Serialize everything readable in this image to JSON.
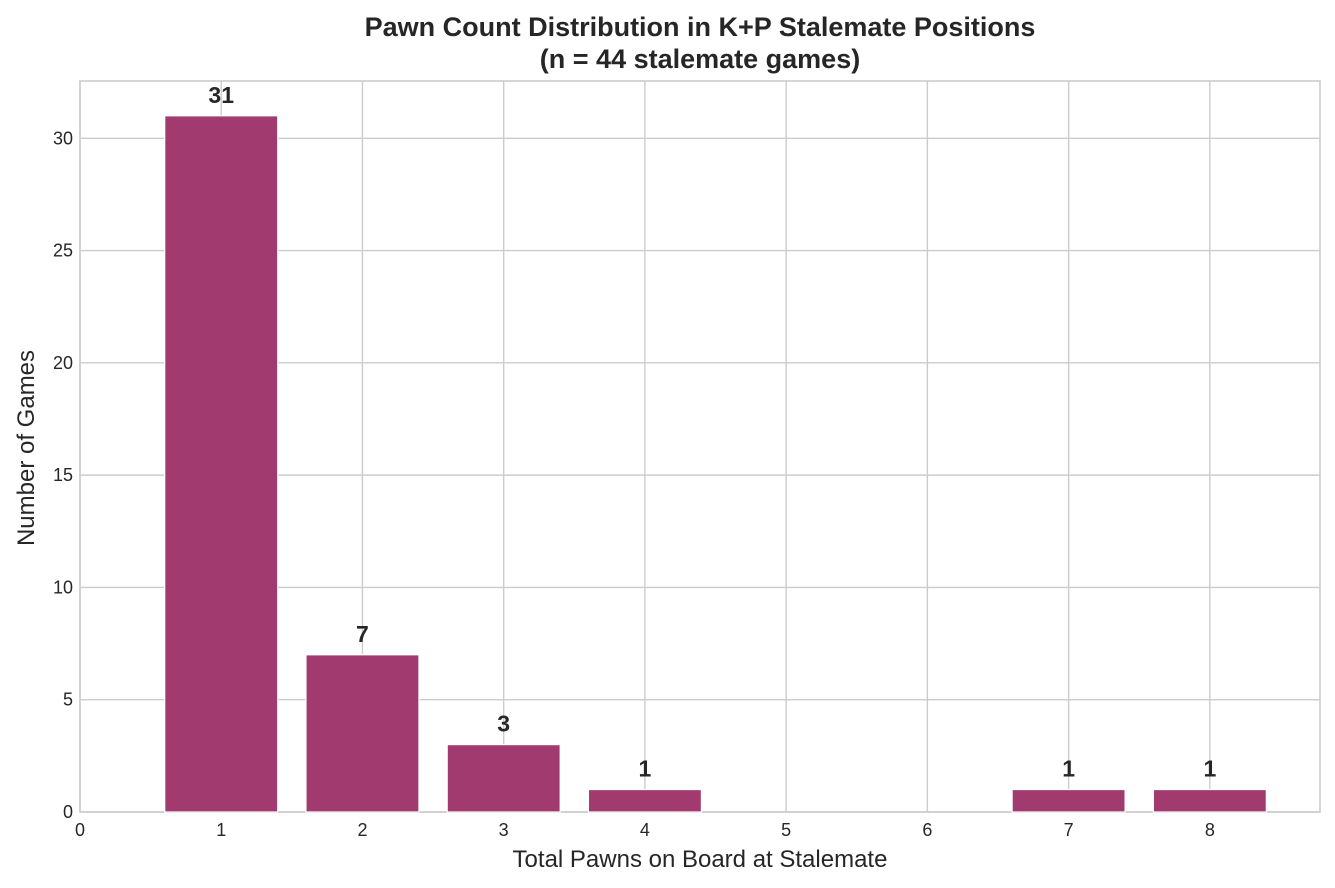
{
  "chart_data": {
    "type": "bar",
    "title": "Pawn Count Distribution in K+P Stalemate Positions",
    "subtitle": "(n = 44 stalemate games)",
    "xlabel": "Total Pawns on Board at Stalemate",
    "ylabel": "Number of Games",
    "categories": [
      1,
      2,
      3,
      4,
      7,
      8
    ],
    "values": [
      31,
      7,
      3,
      1,
      1,
      1
    ],
    "data_labels": [
      "31",
      "7",
      "3",
      "1",
      "1",
      "1"
    ],
    "xlim": [
      0,
      8.78
    ],
    "ylim": [
      0,
      32.55
    ],
    "x_ticks": [
      0,
      1,
      2,
      3,
      4,
      5,
      6,
      7,
      8
    ],
    "y_ticks": [
      0,
      5,
      10,
      15,
      20,
      25,
      30
    ],
    "bar_width": 0.8,
    "bar_color": "#a03a6f",
    "grid": true,
    "legend": "none"
  }
}
